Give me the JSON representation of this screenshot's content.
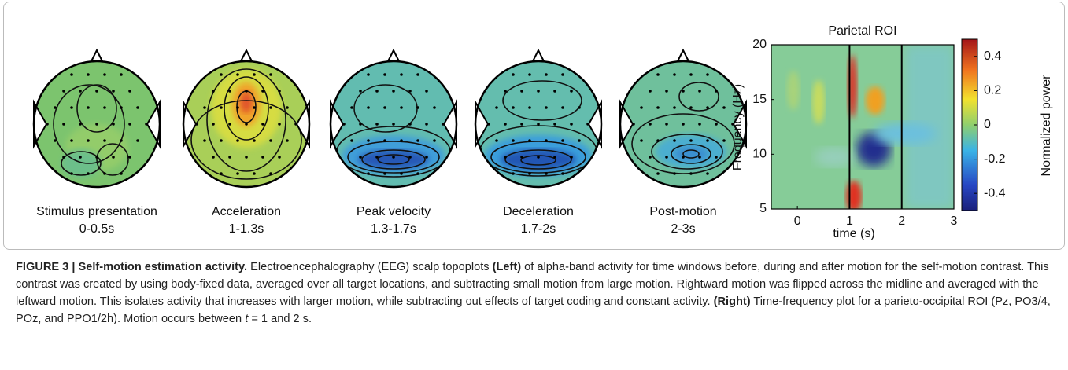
{
  "topoplots": [
    {
      "name": "Stimulus presentation",
      "window": "0-0.5s"
    },
    {
      "name": "Acceleration",
      "window": "1-1.3s"
    },
    {
      "name": "Peak velocity",
      "window": "1.3-1.7s"
    },
    {
      "name": "Deceleration",
      "window": "1.7-2s"
    },
    {
      "name": "Post-motion",
      "window": "2-3s"
    }
  ],
  "chart_data": {
    "type": "heatmap",
    "title": "Parietal ROI",
    "x_label": "time (s)",
    "y_label": "Frequency (Hz)",
    "xlim": [
      -0.5,
      3
    ],
    "xticks": [
      0,
      1,
      2,
      3
    ],
    "ylim": [
      5,
      20
    ],
    "yticks": [
      5,
      10,
      15,
      20
    ],
    "vlines": [
      1,
      2
    ],
    "colorbar": {
      "label": "Normalized power",
      "lim": [
        -0.5,
        0.5
      ],
      "ticks": [
        0.4,
        0.2,
        0,
        -0.2,
        -0.4
      ]
    }
  },
  "caption": {
    "parts": [
      "FIGURE 3 | Self-motion estimation activity.",
      " Electroencephalography (EEG) scalp topoplots ",
      "(Left)",
      " of alpha-band activity for time windows before, during and after motion for the self-motion contrast. This contrast was created by using body-fixed data, averaged over all target locations, and subtracting small motion from large motion. Rightward motion was flipped across the midline and averaged with the leftward motion. This isolates activity that increases with larger motion, while subtracting out effects of target coding and constant activity. ",
      "(Right)",
      " Time-frequency plot for a parieto-occipital ROI (Pz, PO3/4, POz, and PPO1/2h). Motion occurs between ",
      "t",
      " = 1 and 2 s."
    ]
  }
}
